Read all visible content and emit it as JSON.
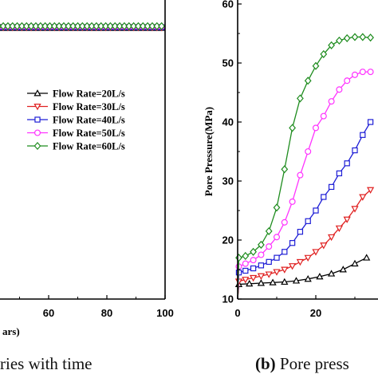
{
  "colors": {
    "s20": "#000000",
    "s30": "#e02020",
    "s40": "#1f1fd6",
    "s50": "#ff33ff",
    "s60": "#1e8c1e"
  },
  "captions": {
    "left": "ries with time",
    "right_bold": "(b)",
    "right_text": " Pore press"
  },
  "chart_data": [
    {
      "type": "line",
      "panel": "left (cropped)",
      "xlabel": "ars)",
      "ylabel": "",
      "x_ticks": [
        "60",
        "80",
        "100"
      ],
      "xlim_visible": [
        38,
        100
      ],
      "legend": {
        "placement": "center",
        "entries": [
          "Flow Rate=20L/s",
          "Flow Rate=30L/s",
          "Flow Rate=40L/s",
          "Flow Rate=50L/s",
          "Flow Rate=60L/s"
        ]
      },
      "series": [
        {
          "name": "Flow Rate=20L/s",
          "marker": "triangle-up",
          "x": [
            38,
            100
          ],
          "y_level": "flat"
        },
        {
          "name": "Flow Rate=30L/s",
          "marker": "triangle-down",
          "x": [
            38,
            100
          ],
          "y_level": "flat"
        },
        {
          "name": "Flow Rate=40L/s",
          "marker": "square",
          "x": [
            38,
            100
          ],
          "y_level": "flat"
        },
        {
          "name": "Flow Rate=50L/s",
          "marker": "circle",
          "x": [
            38,
            100
          ],
          "y_level": "flat"
        },
        {
          "name": "Flow Rate=60L/s",
          "marker": "diamond",
          "x": [
            38,
            100
          ],
          "y_level": "flat"
        }
      ]
    },
    {
      "type": "line",
      "panel": "right (cropped)",
      "ylabel": "Pore Pressure(MPa)",
      "xlabel": "",
      "ylim": [
        10,
        60
      ],
      "y_ticks": [
        "10",
        "20",
        "30",
        "40",
        "50",
        "60"
      ],
      "x_ticks": [
        "0",
        "20"
      ],
      "xlim_visible": [
        0,
        34
      ],
      "series": [
        {
          "name": "Flow Rate=20L/s",
          "marker": "triangle-up",
          "x": [
            0,
            0.3,
            3,
            6,
            9,
            12,
            15,
            18,
            21,
            24,
            27,
            30,
            33
          ],
          "y": [
            10,
            12.5,
            12.6,
            12.7,
            12.8,
            12.9,
            13.1,
            13.4,
            13.8,
            14.3,
            15.0,
            16.0,
            17.0
          ]
        },
        {
          "name": "Flow Rate=30L/s",
          "marker": "triangle-down",
          "x": [
            0,
            0.3,
            2,
            4,
            6,
            8,
            10,
            12,
            14,
            16,
            18,
            20,
            22,
            24,
            26,
            28,
            30,
            32,
            34
          ],
          "y": [
            10,
            13.0,
            13.3,
            13.6,
            13.9,
            14.2,
            14.6,
            15.0,
            15.6,
            16.3,
            17.0,
            18.0,
            19.1,
            20.5,
            22.0,
            23.5,
            25.3,
            27.3,
            28.5
          ]
        },
        {
          "name": "Flow Rate=40L/s",
          "marker": "square",
          "x": [
            0,
            0.3,
            2,
            4,
            6,
            8,
            10,
            12,
            14,
            16,
            18,
            20,
            22,
            24,
            26,
            28,
            30,
            32,
            34
          ],
          "y": [
            10,
            14.5,
            14.8,
            15.2,
            15.7,
            16.3,
            17.0,
            18.0,
            19.5,
            21.4,
            23.2,
            25.0,
            27.3,
            29.0,
            31.3,
            33.0,
            35.2,
            37.8,
            40.0
          ]
        },
        {
          "name": "Flow Rate=50L/s",
          "marker": "circle",
          "x": [
            0,
            0.3,
            2,
            4,
            6,
            8,
            10,
            12,
            14,
            16,
            18,
            20,
            22,
            24,
            26,
            28,
            30,
            32,
            34
          ],
          "y": [
            10,
            15.5,
            16.0,
            16.6,
            17.5,
            18.9,
            20.5,
            23.0,
            26.5,
            31.0,
            35.0,
            39.0,
            41.0,
            43.5,
            45.5,
            47.0,
            48.0,
            48.5,
            48.5
          ]
        },
        {
          "name": "Flow Rate=60L/s",
          "marker": "diamond",
          "x": [
            0,
            0.3,
            2,
            4,
            6,
            8,
            10,
            12,
            14,
            16,
            18,
            20,
            22,
            24,
            26,
            28,
            30,
            32,
            34
          ],
          "y": [
            10,
            17.0,
            17.3,
            18.0,
            19.2,
            21.5,
            25.5,
            32.0,
            39.0,
            44.0,
            47.0,
            49.5,
            51.5,
            53.0,
            53.8,
            54.2,
            54.4,
            54.4,
            54.3
          ]
        }
      ]
    }
  ]
}
